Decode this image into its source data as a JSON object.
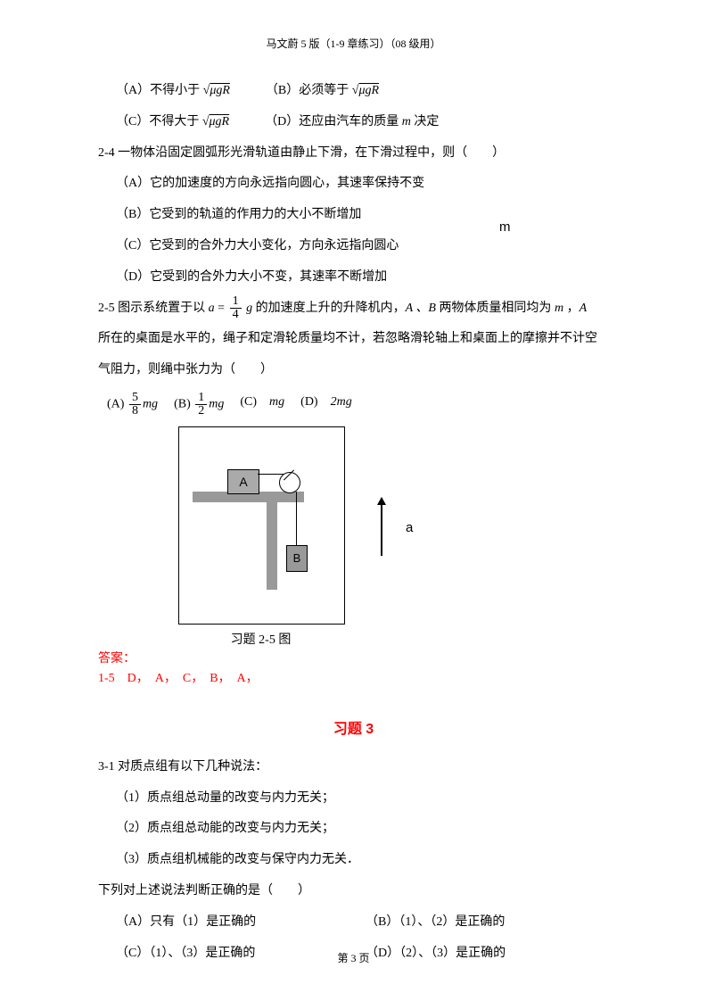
{
  "header": "马文蔚 5 版（1-9 章练习）（08 级用）",
  "q23": {
    "optA": "（A）不得小于",
    "optB": "（B）必须等于",
    "optC": "（C）不得大于",
    "optD_pre": "（D）还应由汽车的质量 ",
    "optD_m": "m",
    "optD_post": " 决定",
    "sqrt_expr": "μgR"
  },
  "q24": {
    "stem": "2-4  一物体沿固定圆弧形光滑轨道由静止下滑，在下滑过程中，则（　　）",
    "A": "（A）它的加速度的方向永远指向圆心，其速率保持不变",
    "B": "（B）它受到的轨道的作用力的大小不断增加",
    "C": "（C）它受到的合外力大小变化，方向永远指向圆心",
    "D": "（D）它受到的合外力大小不变，其速率不断增加",
    "m_float": "m"
  },
  "q25": {
    "pre1": "2-5  图示系统置于以 ",
    "a_eq": "a",
    "frac_num": "1",
    "frac_den": "4",
    "g": "g",
    "post1": " 的加速度上升的升降机内，",
    "AB": "A 、B",
    "post2": " 两物体质量相同均为 ",
    "m": "m",
    "post3": " ，",
    "A_end": "A",
    "line2": "所在的桌面是水平的，绳子和定滑轮质量均不计，若忽略滑轮轴上和桌面上的摩擦并不计空",
    "line3": "气阻力，则绳中张力为（　　）",
    "optA_label": "(A)",
    "optA_num": "5",
    "optA_den": "8",
    "optB_label": "(B)",
    "optB_num": "1",
    "optB_den": "2",
    "optC_label": "(C)",
    "optC_val": "mg",
    "optD_label": "(D)",
    "optD_val": "2mg",
    "mg": "mg",
    "caption": "习题 2-5 图",
    "blockA": "A",
    "blockB": "B",
    "arrow_label": "a"
  },
  "answer": {
    "label": "答案：",
    "list": "1-5　D，　A，　C，　B，　A，"
  },
  "section3": {
    "title": "习题 3",
    "q31": {
      "stem": "3-1  对质点组有以下几种说法：",
      "s1": "（1）质点组总动量的改变与内力无关；",
      "s2": "（2）质点组总动能的改变与内力无关；",
      "s3": "（3）质点组机械能的改变与保守内力无关．",
      "judge": "下列对上述说法判断正确的是（　　）",
      "A": "（A）只有（1）是正确的",
      "B": "（B）（1）、（2）是正确的",
      "C": "（C）（1）、（3）是正确的",
      "D": "（D）（2）、（3）是正确的"
    }
  },
  "footer": "第 3 页"
}
